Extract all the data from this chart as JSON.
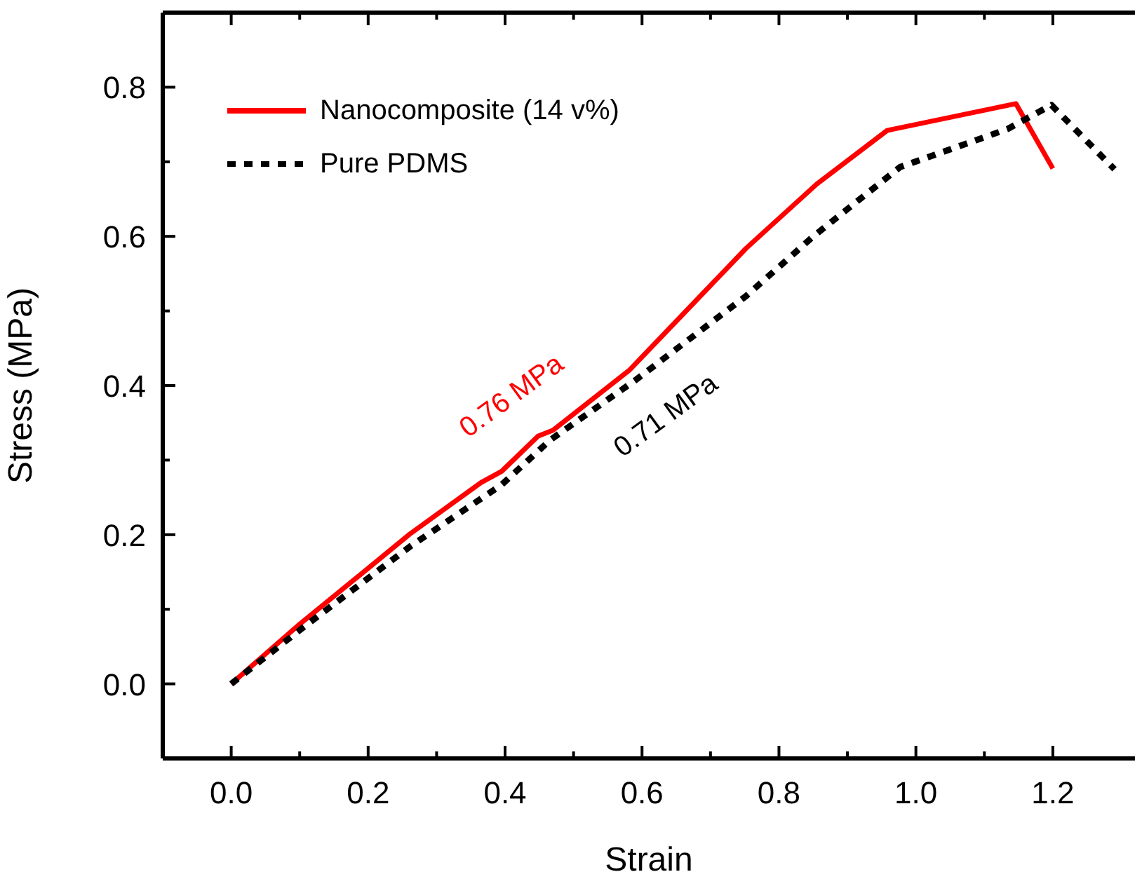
{
  "chart_data": {
    "type": "line",
    "xlabel": "Strain",
    "ylabel": "Stress (MPa)",
    "xlim": [
      -0.1,
      1.32
    ],
    "ylim": [
      -0.1,
      0.9
    ],
    "xticks": [
      {
        "value": 0,
        "label": "0.0"
      },
      {
        "value": 0.1,
        "label": null
      },
      0.2,
      {
        "value": 0.3,
        "label": null
      },
      0.4,
      {
        "value": 0.5,
        "label": null
      },
      0.6,
      {
        "value": 0.7,
        "label": null
      },
      0.8,
      {
        "value": 0.9,
        "label": null
      },
      {
        "value": 1,
        "label": "1.0"
      },
      {
        "value": 1.1,
        "label": null
      },
      1.2
    ],
    "yticks": [
      {
        "value": 0,
        "label": "0.0"
      },
      {
        "value": 0.1,
        "label": null
      },
      0.2,
      {
        "value": 0.3,
        "label": null
      },
      0.4,
      {
        "value": 0.5,
        "label": null
      },
      0.6,
      {
        "value": 0.7,
        "label": null
      },
      0.8
    ],
    "legend": "top left",
    "marker": "none",
    "series": [
      {
        "name": "Nanocomposite (14 v%)",
        "color": "#ff0000",
        "line_style": "solid",
        "x": [
          0,
          0.1,
          0.2,
          0.261,
          0.365,
          0.395,
          0.448,
          0.47,
          0.582,
          0.752,
          0.855,
          0.958,
          1.146,
          1.2
        ],
        "values": [
          0,
          0.08,
          0.155,
          0.201,
          0.27,
          0.285,
          0.332,
          0.34,
          0.421,
          0.584,
          0.67,
          0.742,
          0.778,
          0.691
        ]
      },
      {
        "name": "Pure PDMS",
        "color": "#000000",
        "line_style": "dashed",
        "x": [
          0,
          0.1,
          0.261,
          0.395,
          0.466,
          0.59,
          0.752,
          0.849,
          0.977,
          1.134,
          1.198,
          1.29
        ],
        "values": [
          0,
          0.072,
          0.184,
          0.267,
          0.327,
          0.407,
          0.52,
          0.599,
          0.693,
          0.744,
          0.776,
          0.69
        ]
      }
    ],
    "annotations": [
      "0.76 MPa",
      "0.71 MPa"
    ]
  }
}
